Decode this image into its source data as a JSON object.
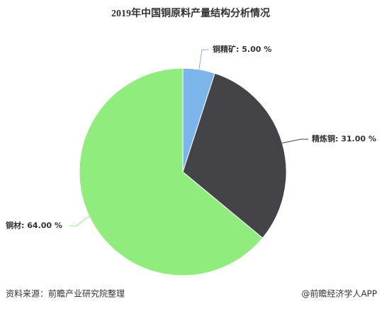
{
  "chart_data": {
    "type": "pie",
    "title": "2019年中国铜原料产量结构分析情况",
    "categories": [
      "铜精矿",
      "精炼铜",
      "铜材"
    ],
    "values": [
      5.0,
      31.0,
      64.0
    ],
    "value_labels": [
      "5.00 %",
      "31.00 %",
      "64.00 %"
    ],
    "label_separator": ": ",
    "colors": [
      "#7cb5ec",
      "#434348",
      "#90ed7d"
    ]
  },
  "footer": {
    "source": "资料来源：前瞻产业研究院整理",
    "brand": "@前瞻经济学人APP"
  }
}
